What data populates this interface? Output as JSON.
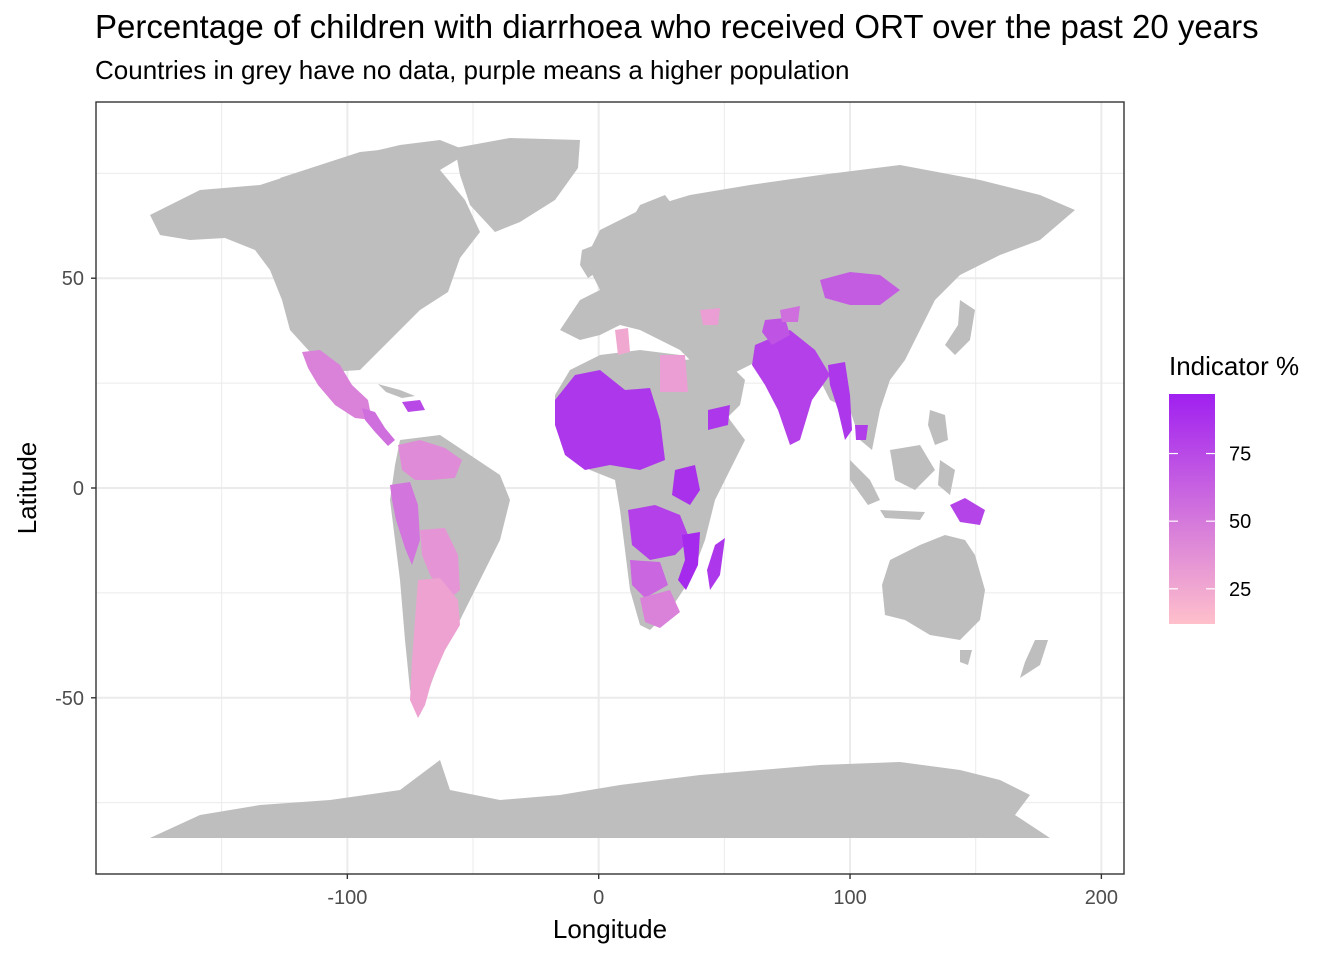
{
  "title": "Percentage of children with diarrhoea who received ORT over the past 20 years",
  "subtitle": "Countries in grey have no data, purple means a higher population",
  "colors": {
    "no_data": "#bebebe",
    "low": "#ffc0cb",
    "high": "#a020f0",
    "grid": "#ebebeb",
    "border": "#333333"
  },
  "chart_data": {
    "type": "choropleth map",
    "xlabel": "Longitude",
    "ylabel": "Latitude",
    "xlim": [
      -200,
      209
    ],
    "ylim": [
      -92,
      92
    ],
    "x_ticks": [
      -100,
      0,
      100,
      200
    ],
    "x_tick_labels": [
      "-100",
      "0",
      "100",
      "200"
    ],
    "y_ticks": [
      -50,
      0,
      50
    ],
    "y_tick_labels": [
      "-50",
      "0",
      "50"
    ],
    "grid": true,
    "legend": {
      "title": "Indicator %",
      "position": "right",
      "scale_min": 12,
      "scale_max": 97,
      "ticks": [
        25,
        50,
        75
      ],
      "tick_labels": [
        "25",
        "50",
        "75"
      ]
    },
    "regions": [
      {
        "name": "Mexico",
        "value": 45
      },
      {
        "name": "Central America",
        "value": 55
      },
      {
        "name": "Haiti / Dominican Republic",
        "value": 75
      },
      {
        "name": "Colombia / Venezuela",
        "value": 40
      },
      {
        "name": "Peru / Ecuador",
        "value": 52
      },
      {
        "name": "Bolivia / Paraguay",
        "value": 35
      },
      {
        "name": "Argentina / Chile",
        "value": 28
      },
      {
        "name": "West Africa",
        "value": 85
      },
      {
        "name": "Egypt",
        "value": 30
      },
      {
        "name": "Morocco / Algeria",
        "value": 25
      },
      {
        "name": "East Africa",
        "value": 88
      },
      {
        "name": "Yemen",
        "value": 85
      },
      {
        "name": "Southern-central Africa",
        "value": 80
      },
      {
        "name": "Namibia / Botswana",
        "value": 60
      },
      {
        "name": "South Africa",
        "value": 45
      },
      {
        "name": "Madagascar",
        "value": 92
      },
      {
        "name": "Mozambique",
        "value": 85
      },
      {
        "name": "India",
        "value": 80
      },
      {
        "name": "Afghanistan / Pakistan",
        "value": 70
      },
      {
        "name": "Nepal",
        "value": 55
      },
      {
        "name": "Myanmar / Bangladesh",
        "value": 85
      },
      {
        "name": "Cambodia",
        "value": 82
      },
      {
        "name": "Mongolia",
        "value": 65
      },
      {
        "name": "Kazakhstan / Central Asia",
        "value": 30
      },
      {
        "name": "Papua New Guinea",
        "value": 78
      }
    ]
  }
}
